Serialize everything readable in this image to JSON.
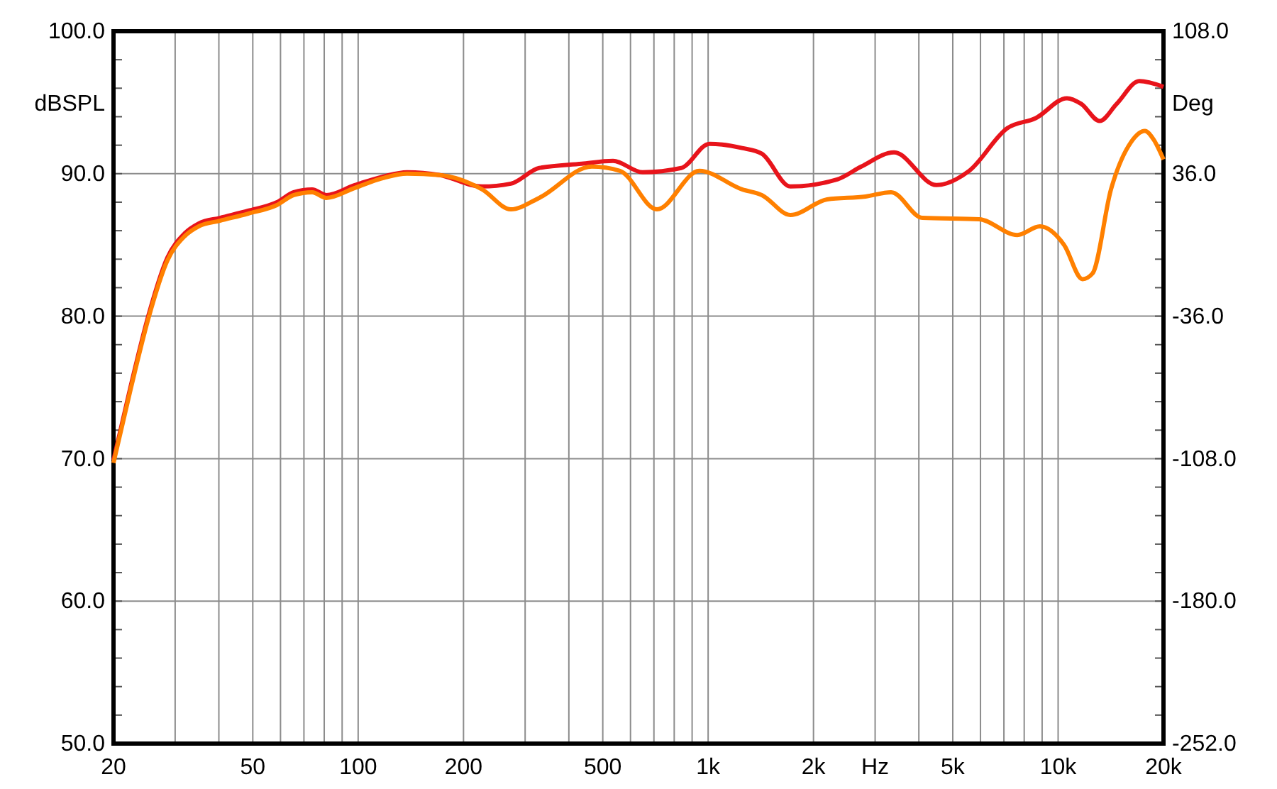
{
  "chart_data": {
    "type": "line",
    "ylabel": "dBSPL",
    "y2label": "Deg",
    "log": "x",
    "grid": true,
    "line_style": "solid",
    "marker": "none",
    "xlim": [
      20,
      20000
    ],
    "xticks": [
      20,
      {
        "value": 30,
        "label": null
      },
      {
        "value": 40,
        "label": null
      },
      50,
      {
        "value": 60,
        "label": null
      },
      {
        "value": 70,
        "label": null
      },
      {
        "value": 80,
        "label": null
      },
      {
        "value": 90,
        "label": null
      },
      100,
      200,
      {
        "value": 300,
        "label": null
      },
      {
        "value": 400,
        "label": null
      },
      500,
      {
        "value": 600,
        "label": null
      },
      {
        "value": 700,
        "label": null
      },
      {
        "value": 800,
        "label": null
      },
      {
        "value": 900,
        "label": null
      },
      {
        "value": 1000,
        "label": "1k"
      },
      {
        "value": 2000,
        "label": "2k"
      },
      {
        "value": 3000,
        "label": "Hz"
      },
      {
        "value": 4000,
        "label": null
      },
      {
        "value": 5000,
        "label": "5k"
      },
      {
        "value": 6000,
        "label": null
      },
      {
        "value": 7000,
        "label": null
      },
      {
        "value": 8000,
        "label": null
      },
      {
        "value": 9000,
        "label": null
      },
      {
        "value": 10000,
        "label": "10k"
      },
      {
        "value": 20000,
        "label": "20k"
      }
    ],
    "ylim": [
      50,
      100
    ],
    "yticks": [
      {
        "value": 50,
        "label": "50.0"
      },
      {
        "value": 60,
        "label": "60.0"
      },
      {
        "value": 70,
        "label": "70.0"
      },
      {
        "value": 80,
        "label": "80.0"
      },
      {
        "value": 90,
        "label": "90.0"
      },
      {
        "value": 100,
        "label": "100.0"
      }
    ],
    "y2lim": [
      -252,
      108
    ],
    "y2ticks": [
      {
        "value": -252,
        "label": "-252.0"
      },
      {
        "value": -180,
        "label": "-180.0"
      },
      {
        "value": -108,
        "label": "-108.0"
      },
      {
        "value": -36,
        "label": "-36.0"
      },
      {
        "value": 36,
        "label": "36.0"
      },
      {
        "value": 108,
        "label": "108.0"
      }
    ],
    "series": [
      {
        "color": "#e8141b",
        "x": [
          20,
          22.4,
          25.2,
          28.5,
          31.9,
          35,
          40.3,
          48.5,
          58.6,
          65.5,
          73.9,
          81.1,
          97.8,
          118,
          138,
          171,
          226,
          273,
          329,
          435,
          535,
          650,
          838,
          1009,
          1250,
          1424,
          1718,
          2338,
          2738,
          3396,
          4492,
          5568,
          7166,
          8630,
          10600,
          11640,
          13140,
          14700,
          17060,
          20000
        ],
        "values": [
          69.9,
          75.1,
          80.1,
          84.1,
          85.8,
          86.5,
          86.9,
          87.4,
          88.0,
          88.7,
          88.9,
          88.5,
          89.2,
          89.8,
          90.1,
          89.9,
          89.1,
          89.3,
          90.4,
          90.7,
          90.9,
          90.1,
          90.4,
          92.1,
          91.8,
          91.4,
          89.1,
          89.6,
          90.5,
          91.5,
          89.2,
          90.2,
          93.2,
          93.9,
          95.3,
          94.9,
          93.7,
          94.9,
          96.5,
          96.1
        ]
      },
      {
        "color": "#ff8000",
        "x": [
          20,
          22.4,
          25.2,
          28.5,
          31.9,
          35,
          40.3,
          48.5,
          58.6,
          65.5,
          73.9,
          81.1,
          97.8,
          118,
          138,
          171,
          226,
          273,
          329,
          465,
          560,
          714,
          944,
          1250,
          1424,
          1718,
          2188,
          2817,
          3332,
          4094,
          5946,
          7646,
          8872,
          10400,
          11740,
          12540,
          14160,
          16140,
          17700,
          18740,
          20000
        ],
        "values": [
          69.7,
          74.9,
          79.9,
          83.9,
          85.6,
          86.3,
          86.7,
          87.2,
          87.8,
          88.5,
          88.7,
          88.3,
          89.0,
          89.7,
          90.0,
          89.9,
          88.9,
          87.5,
          88.3,
          90.5,
          90.2,
          87.5,
          90.2,
          88.9,
          88.5,
          87.1,
          88.2,
          88.4,
          88.7,
          86.9,
          86.8,
          85.7,
          86.3,
          85.0,
          82.6,
          83.0,
          88.9,
          92.2,
          93.0,
          92.4,
          91.0
        ]
      }
    ]
  }
}
